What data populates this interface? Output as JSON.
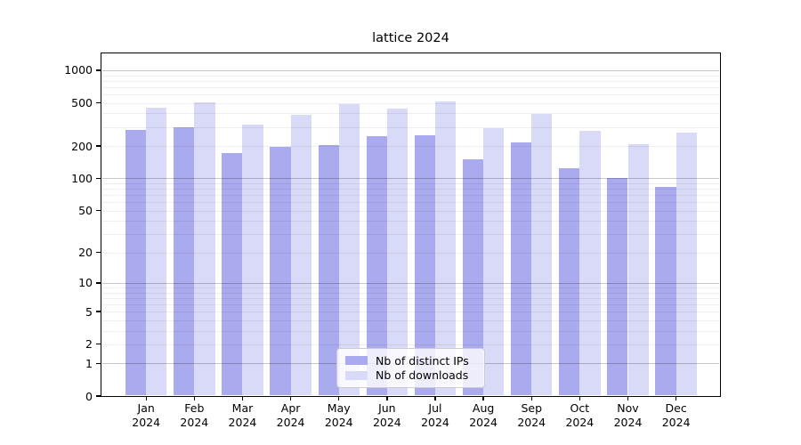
{
  "chart_data": {
    "type": "bar",
    "title": "lattice 2024",
    "categories": [
      "Jan 2024",
      "Feb 2024",
      "Mar 2024",
      "Apr 2024",
      "May 2024",
      "Jun 2024",
      "Jul 2024",
      "Aug 2024",
      "Sep 2024",
      "Oct 2024",
      "Nov 2024",
      "Dec 2024"
    ],
    "series": [
      {
        "name": "Nb of distinct IPs",
        "color": "#aaaaee",
        "values": [
          281,
          296,
          173,
          196,
          202,
          248,
          253,
          150,
          215,
          125,
          100,
          83
        ]
      },
      {
        "name": "Nb of downloads",
        "color": "#d9d9f8",
        "values": [
          451,
          506,
          315,
          387,
          491,
          447,
          516,
          291,
          394,
          275,
          206,
          265
        ]
      }
    ],
    "xlabel": "",
    "ylabel": "",
    "yscale": "log1p",
    "ylim": [
      0,
      1430
    ],
    "y_ticks": [
      0,
      1,
      2,
      5,
      10,
      20,
      50,
      100,
      200,
      500,
      1000
    ],
    "grid": "major and minor horizontal gridlines",
    "legend_position": "lower center",
    "colors": {
      "major_grid": "#c8c8c8",
      "minor_grid": "#ededed",
      "axis": "#000000",
      "background": "#ffffff"
    }
  }
}
